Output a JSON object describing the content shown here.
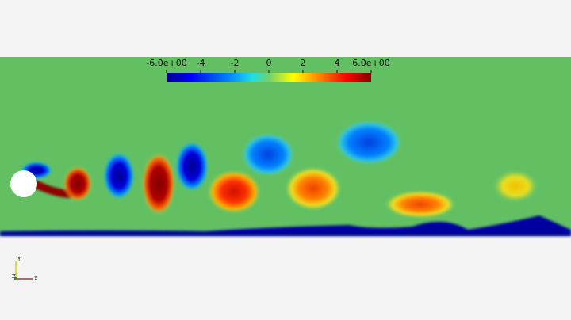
{
  "colorbar": {
    "ticks": [
      {
        "value": -6,
        "label": "-6.0e+00"
      },
      -4,
      -2,
      0,
      2,
      4,
      {
        "value": 6,
        "label": "6.0e+00"
      }
    ]
  },
  "axes_triad": {
    "y": "Y",
    "z": "Z",
    "x": "X"
  }
}
